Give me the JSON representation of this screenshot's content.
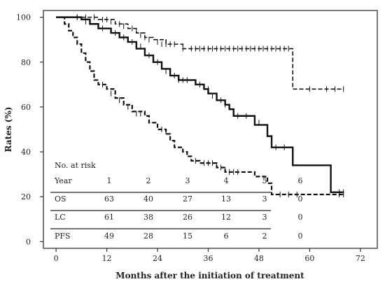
{
  "chart_data": {
    "type": "line",
    "subtype": "kaplan-meier",
    "xlabel": "Months after the initiation of treatment",
    "ylabel": "Rates (%)",
    "xlim": [
      -3,
      76
    ],
    "ylim": [
      -3,
      103
    ],
    "x_ticks": [
      0,
      12,
      24,
      36,
      48,
      60,
      72
    ],
    "y_ticks": [
      0,
      20,
      40,
      60,
      80,
      100
    ],
    "series": [
      {
        "style": "dashed-top",
        "dash": "6,3",
        "width": 1.6,
        "steps": [
          [
            0,
            100
          ],
          [
            10,
            99
          ],
          [
            14,
            97
          ],
          [
            17,
            95
          ],
          [
            19,
            93
          ],
          [
            21,
            91
          ],
          [
            23,
            90
          ],
          [
            26,
            88
          ],
          [
            28,
            88
          ],
          [
            30,
            86
          ],
          [
            56,
            86
          ],
          [
            56,
            68
          ],
          [
            68,
            68
          ]
        ],
        "censors": [
          [
            5,
            100
          ],
          [
            7,
            100
          ],
          [
            9,
            100
          ],
          [
            11,
            99
          ],
          [
            12,
            99
          ],
          [
            13,
            98
          ],
          [
            15,
            97
          ],
          [
            16,
            96
          ],
          [
            18,
            95
          ],
          [
            19,
            94
          ],
          [
            20,
            92
          ],
          [
            21,
            91
          ],
          [
            22,
            90
          ],
          [
            24,
            89
          ],
          [
            25,
            88
          ],
          [
            26,
            88
          ],
          [
            27,
            88
          ],
          [
            28,
            88
          ],
          [
            30,
            86
          ],
          [
            32,
            86
          ],
          [
            33,
            86
          ],
          [
            34,
            86
          ],
          [
            35,
            86
          ],
          [
            36,
            86
          ],
          [
            37,
            86
          ],
          [
            38,
            86
          ],
          [
            39,
            86
          ],
          [
            40,
            86
          ],
          [
            41,
            86
          ],
          [
            42,
            86
          ],
          [
            43,
            86
          ],
          [
            44,
            86
          ],
          [
            45,
            86
          ],
          [
            46,
            86
          ],
          [
            47,
            86
          ],
          [
            48,
            86
          ],
          [
            49,
            86
          ],
          [
            50,
            86
          ],
          [
            51,
            86
          ],
          [
            52,
            86
          ],
          [
            53,
            86
          ],
          [
            54,
            86
          ],
          [
            55,
            86
          ],
          [
            60,
            68
          ],
          [
            64,
            68
          ],
          [
            66,
            68
          ],
          [
            68,
            68
          ]
        ]
      },
      {
        "style": "solid",
        "dash": "",
        "width": 2.4,
        "steps": [
          [
            0,
            100
          ],
          [
            6,
            99
          ],
          [
            8,
            97
          ],
          [
            10,
            95
          ],
          [
            13,
            93
          ],
          [
            15,
            91
          ],
          [
            17,
            89
          ],
          [
            19,
            86
          ],
          [
            21,
            83
          ],
          [
            23,
            80
          ],
          [
            25,
            77
          ],
          [
            27,
            74
          ],
          [
            29,
            72
          ],
          [
            31,
            72
          ],
          [
            33,
            70
          ],
          [
            35,
            68
          ],
          [
            36,
            66
          ],
          [
            38,
            63
          ],
          [
            40,
            61
          ],
          [
            41,
            59
          ],
          [
            42,
            56
          ],
          [
            47,
            56
          ],
          [
            47,
            52
          ],
          [
            49,
            52
          ],
          [
            50,
            47
          ],
          [
            51,
            42
          ],
          [
            55,
            42
          ],
          [
            56,
            34
          ],
          [
            65,
            34
          ],
          [
            65,
            22
          ],
          [
            68,
            22
          ]
        ],
        "censors": [
          [
            5,
            100
          ],
          [
            7,
            98
          ],
          [
            11,
            95
          ],
          [
            14,
            93
          ],
          [
            16,
            91
          ],
          [
            18,
            89
          ],
          [
            20,
            87
          ],
          [
            22,
            83
          ],
          [
            24,
            80
          ],
          [
            25,
            78
          ],
          [
            26,
            76
          ],
          [
            27,
            75
          ],
          [
            28,
            74
          ],
          [
            29,
            72
          ],
          [
            30,
            72
          ],
          [
            31,
            72
          ],
          [
            34,
            70
          ],
          [
            35,
            69
          ],
          [
            36,
            68
          ],
          [
            37,
            65
          ],
          [
            38,
            64
          ],
          [
            39,
            63
          ],
          [
            40,
            61
          ],
          [
            43,
            56
          ],
          [
            45,
            56
          ],
          [
            48,
            53
          ],
          [
            50,
            48
          ],
          [
            52,
            42
          ],
          [
            54,
            42
          ],
          [
            67,
            22
          ],
          [
            68,
            22
          ]
        ]
      },
      {
        "style": "dashed-bottom",
        "dash": "6,3",
        "width": 2.2,
        "steps": [
          [
            0,
            100
          ],
          [
            2,
            97
          ],
          [
            3,
            94
          ],
          [
            4,
            91
          ],
          [
            5,
            88
          ],
          [
            6,
            84
          ],
          [
            7,
            80
          ],
          [
            8,
            76
          ],
          [
            9,
            72
          ],
          [
            10,
            70
          ],
          [
            12,
            68
          ],
          [
            14,
            64
          ],
          [
            16,
            61
          ],
          [
            18,
            58
          ],
          [
            21,
            56
          ],
          [
            22,
            53
          ],
          [
            24,
            50
          ],
          [
            26,
            48
          ],
          [
            27,
            45
          ],
          [
            28,
            42
          ],
          [
            30,
            40
          ],
          [
            31,
            38
          ],
          [
            32,
            36
          ],
          [
            34,
            35
          ],
          [
            37,
            35
          ],
          [
            38,
            33
          ],
          [
            40,
            31
          ],
          [
            41,
            31
          ],
          [
            42,
            31
          ],
          [
            47,
            31
          ],
          [
            47,
            29
          ],
          [
            49,
            29
          ],
          [
            50,
            26
          ],
          [
            51,
            26
          ],
          [
            51,
            21
          ],
          [
            68,
            21
          ]
        ],
        "censors": [
          [
            11,
            70
          ],
          [
            13,
            66
          ],
          [
            15,
            63
          ],
          [
            17,
            60
          ],
          [
            19,
            57
          ],
          [
            20,
            57
          ],
          [
            25,
            50
          ],
          [
            26,
            49
          ],
          [
            33,
            36
          ],
          [
            35,
            35
          ],
          [
            36,
            35
          ],
          [
            37,
            35
          ],
          [
            38,
            34
          ],
          [
            39,
            33
          ],
          [
            40,
            32
          ],
          [
            41,
            31
          ],
          [
            42,
            31
          ],
          [
            43,
            31
          ],
          [
            53,
            21
          ],
          [
            55,
            21
          ],
          [
            57,
            21
          ],
          [
            67,
            21
          ],
          [
            68,
            21
          ]
        ]
      }
    ],
    "risk_table": {
      "title": "No. at risk",
      "header_label": "Year",
      "years": [
        "1",
        "2",
        "3",
        "4",
        "5",
        "6"
      ],
      "rows": [
        {
          "label": "OS",
          "values": [
            "63",
            "40",
            "27",
            "13",
            "3",
            "0"
          ]
        },
        {
          "label": "LC",
          "values": [
            "61",
            "38",
            "26",
            "12",
            "3",
            "0"
          ]
        },
        {
          "label": "PFS",
          "values": [
            "49",
            "28",
            "15",
            "6",
            "2",
            "0"
          ]
        }
      ]
    }
  }
}
